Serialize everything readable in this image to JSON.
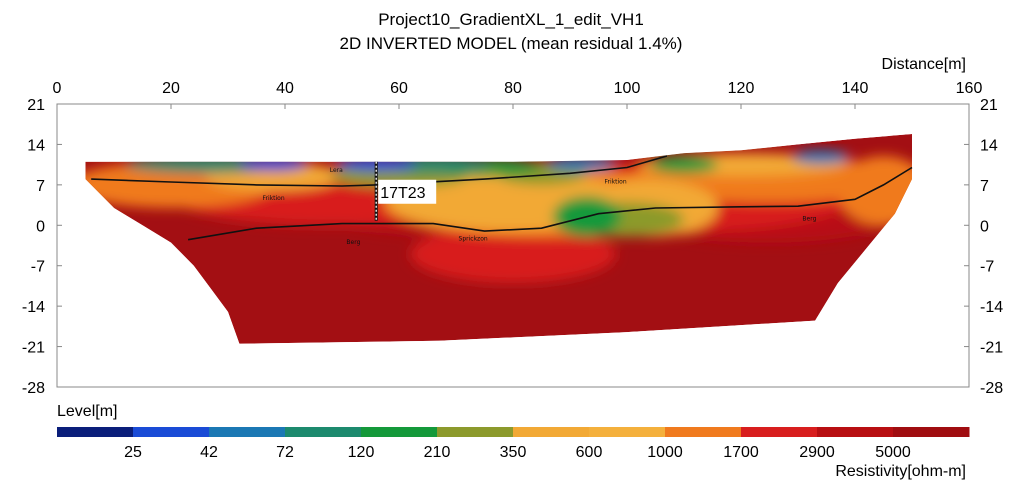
{
  "chart_data": {
    "type": "heatmap",
    "title": "Project10_GradientXL_1_edit_VH1",
    "subtitle": "2D INVERTED MODEL (mean residual 1.4%)",
    "xlabel": "Distance[m]",
    "ylabel": "Level[m]",
    "xlim": [
      0,
      160
    ],
    "ylim": [
      -28,
      21
    ],
    "xticks": [
      0,
      20,
      40,
      60,
      80,
      100,
      120,
      140,
      160
    ],
    "yticks": [
      21,
      14,
      7,
      0,
      -7,
      -14,
      -21,
      -28
    ],
    "colorbar": {
      "label": "Resistivity[ohm-m]",
      "tick_labels": [
        "25",
        "42",
        "72",
        "120",
        "210",
        "350",
        "600",
        "1000",
        "1700",
        "2900",
        "5000"
      ],
      "colors": [
        "#0a1e7a",
        "#1a4bd6",
        "#1b78b4",
        "#1c8a6e",
        "#14993a",
        "#8c9a2c",
        "#f2a935",
        "#f4b03c",
        "#f07a1e",
        "#d81e1e",
        "#b80f12",
        "#a00d10"
      ]
    },
    "surface_profile": [
      {
        "x": 5,
        "y": 11
      },
      {
        "x": 20,
        "y": 11
      },
      {
        "x": 40,
        "y": 11
      },
      {
        "x": 60,
        "y": 11
      },
      {
        "x": 80,
        "y": 11
      },
      {
        "x": 100,
        "y": 11.3
      },
      {
        "x": 110,
        "y": 12.5
      },
      {
        "x": 120,
        "y": 13
      },
      {
        "x": 130,
        "y": 14
      },
      {
        "x": 140,
        "y": 15
      },
      {
        "x": 150,
        "y": 15.8
      }
    ],
    "model_bottom": [
      {
        "x": 5,
        "y": 8
      },
      {
        "x": 10,
        "y": 3
      },
      {
        "x": 15,
        "y": 0
      },
      {
        "x": 20,
        "y": -3
      },
      {
        "x": 24,
        "y": -7
      },
      {
        "x": 27,
        "y": -11
      },
      {
        "x": 30,
        "y": -15
      },
      {
        "x": 32,
        "y": -20.5
      },
      {
        "x": 67,
        "y": -20
      },
      {
        "x": 100,
        "y": -18.5
      },
      {
        "x": 133,
        "y": -16.5
      },
      {
        "x": 137,
        "y": -10
      },
      {
        "x": 142,
        "y": -4
      },
      {
        "x": 147,
        "y": 2
      },
      {
        "x": 150,
        "y": 8
      }
    ],
    "interpreted_lines": [
      {
        "points": [
          {
            "x": 6,
            "y": 8
          },
          {
            "x": 20,
            "y": 7.5
          },
          {
            "x": 35,
            "y": 7
          },
          {
            "x": 50,
            "y": 6.8
          },
          {
            "x": 56,
            "y": 7
          },
          {
            "x": 75,
            "y": 8
          },
          {
            "x": 90,
            "y": 9
          },
          {
            "x": 100,
            "y": 10
          },
          {
            "x": 107,
            "y": 12
          }
        ]
      },
      {
        "points": [
          {
            "x": 23,
            "y": -2.5
          },
          {
            "x": 35,
            "y": -0.5
          },
          {
            "x": 50,
            "y": 0.3
          },
          {
            "x": 66,
            "y": 0.3
          },
          {
            "x": 75,
            "y": -1
          },
          {
            "x": 85,
            "y": -0.5
          },
          {
            "x": 95,
            "y": 2
          },
          {
            "x": 105,
            "y": 3
          },
          {
            "x": 120,
            "y": 3.2
          },
          {
            "x": 130,
            "y": 3.3
          },
          {
            "x": 140,
            "y": 4.5
          },
          {
            "x": 145,
            "y": 7
          },
          {
            "x": 150,
            "y": 10
          }
        ]
      }
    ],
    "zone_labels": [
      {
        "text": "Lera",
        "x": 49,
        "y": 9.2
      },
      {
        "text": "Friktion",
        "x": 38,
        "y": 4.4
      },
      {
        "text": "Friktion",
        "x": 98,
        "y": 7.2
      },
      {
        "text": "Berg",
        "x": 52,
        "y": -3.2
      },
      {
        "text": "Sprickzon",
        "x": 73,
        "y": -2.6
      },
      {
        "text": "Berg",
        "x": 132,
        "y": 0.8
      }
    ],
    "borehole": {
      "label": "17T23",
      "x": 56,
      "y_top": 11,
      "y_bottom": 0.8
    }
  }
}
